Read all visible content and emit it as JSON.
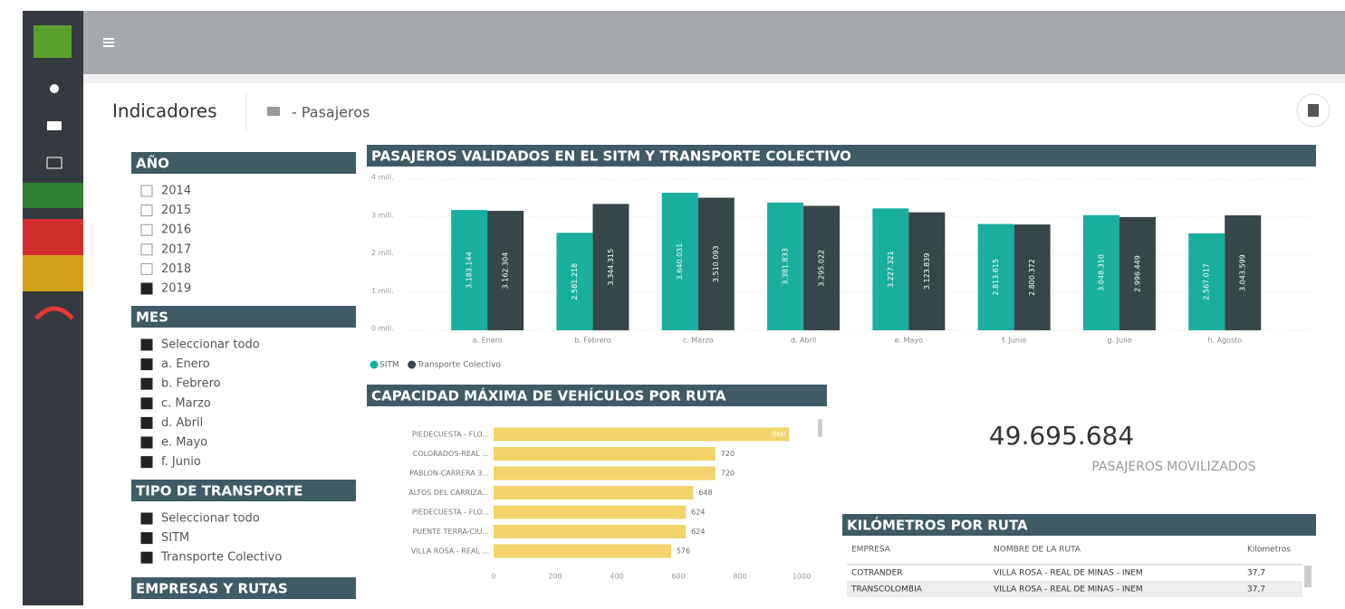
{
  "header": {
    "title": "Indicadores",
    "subtitle": "- Pasajeros"
  },
  "filters": [
    {
      "title": "AÑO",
      "items": [
        {
          "label": "2014",
          "checked": false
        },
        {
          "label": "2015",
          "checked": false
        },
        {
          "label": "2016",
          "checked": false
        },
        {
          "label": "2017",
          "checked": false
        },
        {
          "label": "2018",
          "checked": false
        },
        {
          "label": "2019",
          "checked": true
        }
      ]
    },
    {
      "title": "MES",
      "items": [
        {
          "label": "Seleccionar todo",
          "checked": true
        },
        {
          "label": "a. Enero",
          "checked": true
        },
        {
          "label": "b. Febrero",
          "checked": true
        },
        {
          "label": "c. Marzo",
          "checked": true
        },
        {
          "label": "d. Abril",
          "checked": true
        },
        {
          "label": "e. Mayo",
          "checked": true
        },
        {
          "label": "f. Junio",
          "checked": true
        }
      ]
    },
    {
      "title": "TIPO DE TRANSPORTE",
      "items": [
        {
          "label": "Seleccionar todo",
          "checked": true
        },
        {
          "label": "SITM",
          "checked": true
        },
        {
          "label": "Transporte Colectivo",
          "checked": true
        }
      ]
    },
    {
      "title": "EMPRESAS Y RUTAS"
    }
  ],
  "kpi": {
    "value": "49.695.684",
    "label": "PASAJEROS MOVILIZADOS"
  },
  "table": {
    "title": "KILÓMETROS POR RUTA",
    "columns": [
      "EMPRESA",
      "NOMBRE DE LA RUTA",
      "Kilometros"
    ],
    "rows": [
      [
        "COTRANDER",
        "VILLA ROSA - REAL DE MINAS - INEM",
        "37,7"
      ],
      [
        "TRANSCOLOMBIA",
        "VILLA ROSA - REAL DE MINAS - INEM",
        "37,7"
      ]
    ]
  },
  "chart_data": [
    {
      "type": "bar",
      "title": "PASAJEROS VALIDADOS EN EL SITM Y TRANSPORTE COLECTIVO",
      "categories": [
        "a. Enero",
        "b. Febrero",
        "c. Marzo",
        "d. Abril",
        "e. Mayo",
        "f. Junio",
        "g. Julio",
        "h. Agosto"
      ],
      "series": [
        {
          "name": "SITM",
          "color": "#1aae9f",
          "values": [
            3183144,
            2581218,
            3640031,
            3381833,
            3227321,
            2813615,
            3048310,
            2567017
          ],
          "value_labels": [
            "3.183.144",
            "2.581.218",
            "3.640.031",
            "3.381.833",
            "3.227.321",
            "2.813.615",
            "3.048.310",
            "2.567.017"
          ]
        },
        {
          "name": "Transporte Colectivo",
          "color": "#374649",
          "values": [
            3162304,
            3344315,
            3510093,
            3295022,
            3123839,
            2800372,
            2996449,
            3043599
          ],
          "value_labels": [
            "3.162.304",
            "3.344.315",
            "3.510.093",
            "3.295.022",
            "3.123.839",
            "2.800.372",
            "2.996.449",
            "3.043.599"
          ]
        }
      ],
      "ylim": [
        0,
        4000000
      ],
      "yticks": [
        {
          "value": 0,
          "label": "0 mill."
        },
        {
          "value": 1000000,
          "label": "1 mill."
        },
        {
          "value": 2000000,
          "label": "2 mill."
        },
        {
          "value": 3000000,
          "label": "3 mill."
        },
        {
          "value": 4000000,
          "label": "4 mill."
        }
      ],
      "grid": true,
      "legend": "bottom-left"
    },
    {
      "type": "hbar",
      "title": "CAPACIDAD MÁXIMA DE VEHÍCULOS POR RUTA",
      "categories": [
        "PIEDECUESTA - FLO...",
        "COLORADOS-REAL ...",
        "PABLON-CARRERA 3...",
        "ALTOS DEL CARRIZA...",
        "PIEDECUESTA - FLO...",
        "PUENTE TERRA-CIU...",
        "VILLA ROSA - REAL ..."
      ],
      "values": [
        960,
        720,
        720,
        648,
        624,
        624,
        576
      ],
      "color": "#f2d46a",
      "xlim": [
        0,
        1000
      ],
      "xticks": [
        0,
        200,
        400,
        600,
        800,
        1000
      ]
    }
  ]
}
